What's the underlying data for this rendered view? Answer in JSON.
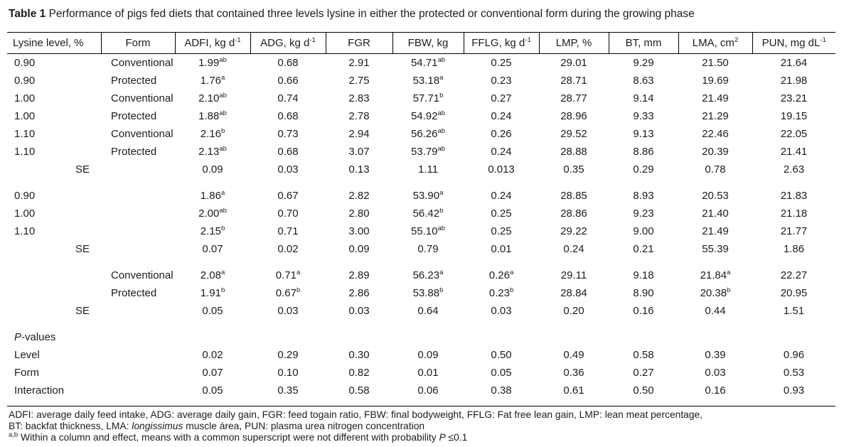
{
  "title": {
    "label": "Table 1",
    "text": "Performance of pigs fed diets that contained three levels lysine in either the protected or conventional form during the growing phase"
  },
  "table": {
    "columns": [
      "Lysine level, %",
      "Form",
      "ADFI, kg d^-1^",
      "ADG, kg d^-1^",
      "FGR",
      "FBW, kg",
      "FFLG, kg d^-1^",
      "LMP, %",
      "BT, mm",
      "LMA, cm^2^",
      "PUN, mg dL^-1^"
    ],
    "sections": [
      {
        "name": "level-by-form-means",
        "rows": [
          [
            "0.90",
            "Conventional",
            "1.99^ab^",
            "0.68",
            "2.91",
            "54.71^ab^",
            "0.25",
            "29.01",
            "9.29",
            "21.50",
            "21.64"
          ],
          [
            "0.90",
            "Protected",
            "1.76^a^",
            "0.66",
            "2.75",
            "53.18^a^",
            "0.23",
            "28.71",
            "8.63",
            "19.69",
            "21.98"
          ],
          [
            "1.00",
            "Conventional",
            "2.10^ab^",
            "0.74",
            "2.83",
            "57.71^b^",
            "0.27",
            "28.77",
            "9.14",
            "21.49",
            "23.21"
          ],
          [
            "1.00",
            "Protected",
            "1.88^ab^",
            "0.68",
            "2.78",
            "54.92^ab^",
            "0.24",
            "28.96",
            "9.33",
            "21.29",
            "19.15"
          ],
          [
            "1.10",
            "Conventional",
            "2.16^b^",
            "0.73",
            "2.94",
            "56.26^ab^",
            "0.26",
            "29.52",
            "9.13",
            "22.46",
            "22.05"
          ],
          [
            "1.10",
            "Protected",
            "2.13^ab^",
            "0.68",
            "3.07",
            "53.79^ab^",
            "0.24",
            "28.88",
            "8.86",
            "20.39",
            "21.41"
          ],
          [
            "SE",
            "",
            "0.09",
            "0.03",
            "0.13",
            "1.11",
            "0.013",
            "0.35",
            "0.29",
            "0.78",
            "2.63"
          ]
        ]
      },
      {
        "name": "level-main-effect",
        "rows": [
          [
            "0.90",
            "",
            "1.86^a^",
            "0.67",
            "2.82",
            "53.90^a^",
            "0.24",
            "28.85",
            "8.93",
            "20.53",
            "21.83"
          ],
          [
            "1.00",
            "",
            "2.00^ab^",
            "0.70",
            "2.80",
            "56.42^b^",
            "0.25",
            "28.86",
            "9.23",
            "21.40",
            "21.18"
          ],
          [
            "1.10",
            "",
            "2.15^b^",
            "0.71",
            "3.00",
            "55.10^ab^",
            "0.25",
            "29.22",
            "9.00",
            "21.49",
            "21.77"
          ],
          [
            "SE",
            "",
            "0.07",
            "0.02",
            "0.09",
            "0.79",
            "0.01",
            "0.24",
            "0.21",
            "55.39",
            "1.86"
          ]
        ]
      },
      {
        "name": "form-main-effect",
        "rows": [
          [
            "",
            "Conventional",
            "2.08^a^",
            "0.71^a^",
            "2.89",
            "56.23^a^",
            "0.26^a^",
            "29.11",
            "9.18",
            "21.84^a^",
            "22.27"
          ],
          [
            "",
            "Protected",
            "1.91^b^",
            "0.67^b^",
            "2.86",
            "53.88^b^",
            "0.23^b^",
            "28.84",
            "8.90",
            "20.38^b^",
            "20.95"
          ],
          [
            "SE",
            "",
            "0.05",
            "0.03",
            "0.03",
            "0.64",
            "0.03",
            "0.20",
            "0.16",
            "0.44",
            "1.51"
          ]
        ]
      },
      {
        "name": "p-values",
        "rows": [
          [
            "*P*-values",
            "",
            "",
            "",
            "",
            "",
            "",
            "",
            "",
            "",
            ""
          ],
          [
            "Level",
            "",
            "0.02",
            "0.29",
            "0.30",
            "0.09",
            "0.50",
            "0.49",
            "0.58",
            "0.39",
            "0.96"
          ],
          [
            "Form",
            "",
            "0.07",
            "0.10",
            "0.82",
            "0.01",
            "0.05",
            "0.36",
            "0.27",
            "0.03",
            "0.53"
          ],
          [
            "Interaction",
            "",
            "0.05",
            "0.35",
            "0.58",
            "0.06",
            "0.38",
            "0.61",
            "0.50",
            "0.16",
            "0.93"
          ]
        ]
      }
    ]
  },
  "footnotes": [
    "ADFI: average daily feed intake, ADG: average daily gain, FGR: feed togain ratio, FBW: final bodyweight, FFLG: Fat free lean gain, LMP: lean meat percentage,",
    "BT: backfat thickness, LMA: *longissimus* muscle área, PUN: plasma urea nitrogen concentration",
    "^a,b^ Within a column and effect, means with a common superscript were not different with probability *P* ≤0.1"
  ]
}
